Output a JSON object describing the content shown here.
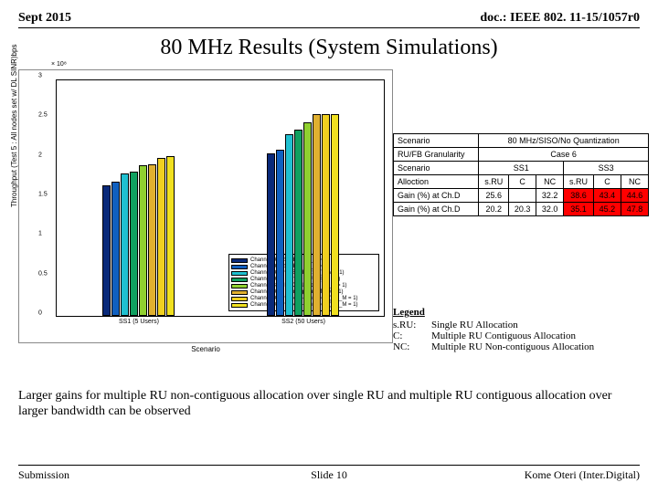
{
  "header": {
    "left": "Sept 2015",
    "right": "doc.: IEEE 802. 11-15/1057r0"
  },
  "title": "80 MHz Results (System Simulations)",
  "chart": {
    "type": "bar",
    "ylabel": "Throughput (Test 5 : All nodes set w/ DL SINR)bps",
    "xlabel": "Scenario",
    "exponent": "× 10⁸",
    "ylim": [
      0,
      3
    ],
    "yticks": [
      0,
      0.5,
      1,
      1.5,
      2,
      2.5,
      3
    ],
    "xticks": [
      "SS1 (5 Users)",
      "SS2 (50 Users)"
    ],
    "series": [
      {
        "label": "Channel D - Random (N_M = 1)",
        "color": "#0a2a7a",
        "values": [
          1.65,
          2.05
        ]
      },
      {
        "label": "Channel D - Random (N_M = 1)",
        "color": "#1060c0",
        "values": [
          1.7,
          2.1
        ]
      },
      {
        "label": "Channel D - PF (Single RU) (N_M = 1)",
        "color": "#20c0d0",
        "values": [
          1.8,
          2.3
        ]
      },
      {
        "label": "Channel D - :: (Single RU) (N_M = 1)",
        "color": "#10a060",
        "values": [
          1.82,
          2.35
        ]
      },
      {
        "label": "Channel B - PF (Contiguous) (N_M = 1)",
        "color": "#90d030",
        "values": [
          1.9,
          2.45
        ]
      },
      {
        "label": "Channel D - :: (Contiguous) (N_M = 1)",
        "color": "#e0b030",
        "values": [
          1.92,
          2.55
        ]
      },
      {
        "label": "Channel D - PF (Non-contiguous) (N_M = 1)",
        "color": "#f0d020",
        "values": [
          2.0,
          2.55
        ]
      },
      {
        "label": "Channel D - PF (Non-contiguous) (N_M = 1)",
        "color": "#f0e020",
        "values": [
          2.02,
          2.55
        ]
      }
    ],
    "background_color": "#ffffff",
    "border_color": "#000000"
  },
  "table": {
    "rows": [
      [
        "Scenario",
        "80 MHz/SISO/No Quantization"
      ],
      [
        "RU/FB Granularity",
        "Case 6"
      ],
      [
        "Scenario",
        "SS1",
        "SS3"
      ],
      [
        "Alloction",
        "s.RU",
        "C",
        "NC",
        "s.RU",
        "C",
        "NC"
      ],
      [
        "Gain (%) at Ch.D",
        "25.6",
        "",
        "32.2",
        "38.6",
        "43.4",
        "44.6"
      ],
      [
        "Gain (%) at Ch.D",
        "20.2",
        "20.3",
        "32.0",
        "35.1",
        "45.2",
        "47.8"
      ]
    ],
    "red_cells": [
      [
        4,
        4
      ],
      [
        4,
        5
      ],
      [
        4,
        6
      ],
      [
        5,
        4
      ],
      [
        5,
        5
      ],
      [
        5,
        6
      ]
    ],
    "colors": {
      "cell_bg": "#ffffff",
      "red_bg": "#ff0000",
      "border": "#000000"
    }
  },
  "legend": {
    "title": "Legend",
    "items": [
      {
        "abbr": "s.RU:",
        "desc": "Single RU Allocation"
      },
      {
        "abbr": "C:",
        "desc": "Multiple RU Contiguous Allocation"
      },
      {
        "abbr": "NC:",
        "desc": "Multiple RU Non-contiguous Allocation"
      }
    ]
  },
  "conclusion": "Larger gains for multiple RU non-contiguous allocation over single RU and multiple RU contiguous allocation over larger bandwidth can be observed",
  "footer": {
    "left": "Submission",
    "center": "Slide 10",
    "right": "Kome Oteri (Inter.Digital)"
  }
}
